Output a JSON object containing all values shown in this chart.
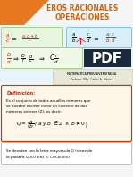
{
  "title_line1": "EROS RACIONALES",
  "title_line2": "OPERACIONES",
  "bg_color": "#f5f5f5",
  "title_color": "#d4620a",
  "orange_triangle_color": "#e87820",
  "formula_box1_bg": "#e8f5e0",
  "formula_box1_border": "#a0c878",
  "formula_box2_bg": "#d8eef8",
  "formula_box2_border": "#80b8d8",
  "formula_box3_bg": "#f0f8e8",
  "formula_box3_border": "#a0c878",
  "pdf_box_bg": "#1a2a3a",
  "teacher_box_bg": "#e8e8d8",
  "teacher_box_border": "#c8c8a8",
  "def_box_bg": "#fdf5e8",
  "def_box_border": "#cc3300",
  "note_box_bg": "#ffffff",
  "note_box_border": "#aaaaaa",
  "def_title": "Definición:",
  "def_text1": "Es el conjunto de todos aquéllos números que",
  "def_text2": "se pueden escribir como un cociente de dos",
  "def_text3": "números enteros (Z), es decir:",
  "bottom_text1": "Se denotan con la letra mayúscula Q (viene de",
  "bottom_text2": "la palabra QUOTIENT = COCIENTE)"
}
